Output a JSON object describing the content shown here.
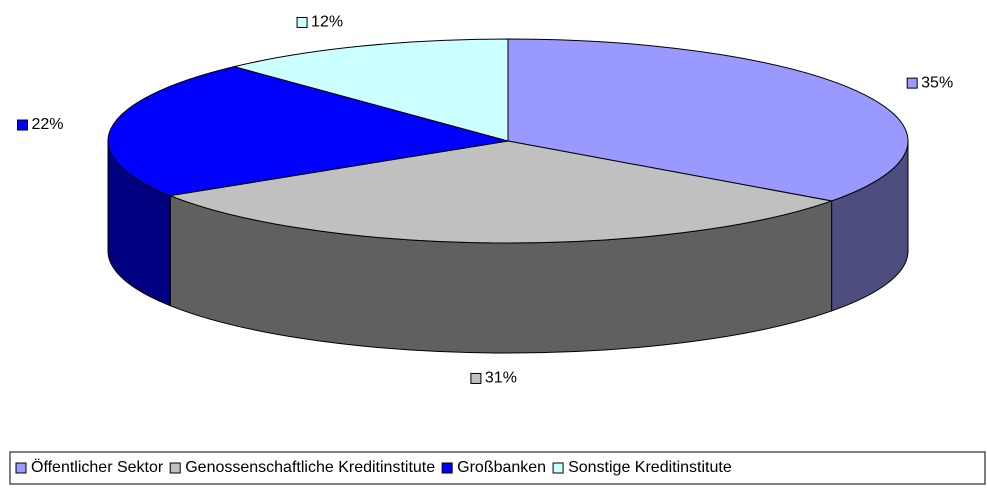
{
  "chart_data": {
    "type": "pie",
    "categories": [
      "Öffentlicher Sektor",
      "Genossenschaftliche Kreditinstitute",
      "Großbanken",
      "Sonstige Kreditinstitute"
    ],
    "values": [
      35,
      31,
      22,
      12
    ],
    "value_labels": [
      "35%",
      "31%",
      "22%",
      "12%"
    ],
    "colors": [
      "#9999ff",
      "#c0c0c0",
      "#0000ff",
      "#ccffff"
    ],
    "legend": "bottom"
  }
}
